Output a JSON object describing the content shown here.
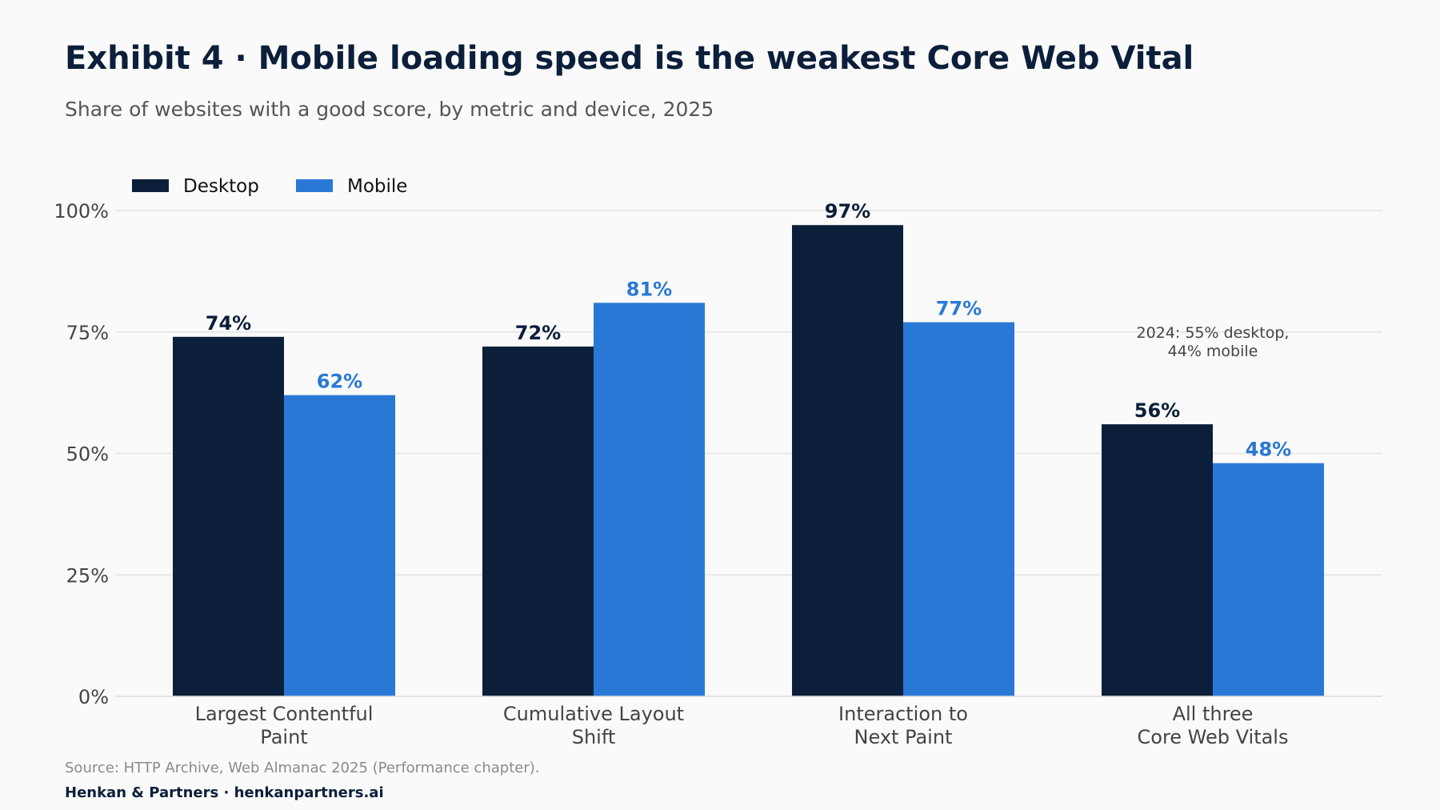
{
  "header": {
    "title": "Exhibit 4 · Mobile loading speed is the weakest Core Web Vital",
    "subtitle": "Share of websites with a good score, by metric and device, 2025"
  },
  "footer": {
    "source": "Source: HTTP Archive, Web Almanac 2025 (Performance chapter).",
    "credit": "Henkan & Partners · henkanpartners.ai"
  },
  "colors": {
    "desktop": "#0c1f3a",
    "mobile": "#2a78d6",
    "grid": "#e3e3e3",
    "axis_text": "#444444",
    "annotation": "#444444"
  },
  "chart_data": {
    "type": "bar",
    "categories": [
      [
        "Largest Contentful",
        "Paint"
      ],
      [
        "Cumulative Layout",
        "Shift"
      ],
      [
        "Interaction to",
        "Next Paint"
      ],
      [
        "All three",
        "Core Web Vitals"
      ]
    ],
    "series": [
      {
        "name": "Desktop",
        "values": [
          74,
          72,
          97,
          56
        ]
      },
      {
        "name": "Mobile",
        "values": [
          62,
          81,
          77,
          48
        ]
      }
    ],
    "value_suffix": "%",
    "ylim": [
      0,
      100
    ],
    "yticks": [
      0,
      25,
      50,
      75,
      100
    ],
    "ytick_labels": [
      "0%",
      "25%",
      "50%",
      "75%",
      "100%"
    ],
    "grid": true,
    "legend_position": "top-left",
    "annotations": [
      {
        "category_index": 3,
        "lines": [
          "2024: 55% desktop,",
          "44% mobile"
        ]
      }
    ]
  }
}
